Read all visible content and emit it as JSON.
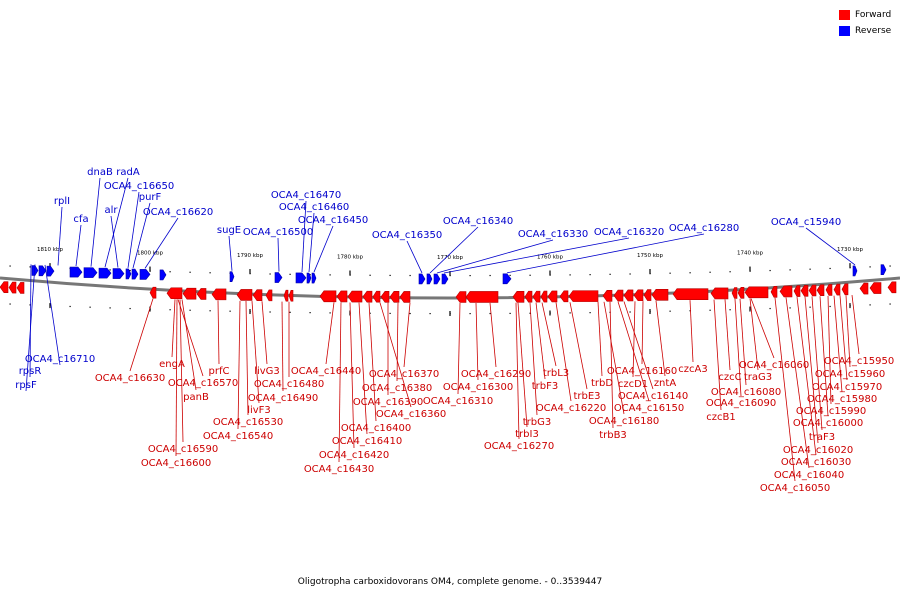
{
  "caption": "Oligotropha carboxidovorans OM4, complete genome. - 0..3539447",
  "legend": [
    {
      "label": "Forward",
      "color": "#ff0000"
    },
    {
      "label": "Reverse",
      "color": "#0000ff"
    }
  ],
  "colors": {
    "forward": "#ff0000",
    "forward_dark": "#b30000",
    "reverse": "#0000ff",
    "backbone": "#777777",
    "forward_label": "#cc0000",
    "reverse_label": "#0000cc"
  },
  "ruler_labels": [
    "1810 kbp",
    "1800 kbp",
    "1790 kbp",
    "1780 kbp",
    "1770 kbp",
    "1760 kbp",
    "1750 kbp",
    "1740 kbp",
    "1730 kbp"
  ],
  "reverse_genes": [
    "rpsR",
    "rpsF",
    "OCA4_c16710",
    "rplI",
    "cfa",
    "dnaB",
    "radA",
    "alr",
    "OCA4_c16650",
    "purF",
    "OCA4_c16620",
    "sugE",
    "OCA4_c16500",
    "OCA4_c16470",
    "OCA4_c16460",
    "OCA4_c16450",
    "OCA4_c16350",
    "OCA4_c16340",
    "OCA4_c16330",
    "OCA4_c16320",
    "OCA4_c16280",
    "OCA4_c15940"
  ],
  "forward_genes": [
    "OCA4_c16630",
    "engA",
    "OCA4_c16570",
    "panB",
    "prfC",
    "OCA4_c16590",
    "OCA4_c16600",
    "livG3",
    "OCA4_c16480",
    "OCA4_c16490",
    "livF3",
    "OCA4_c16530",
    "OCA4_c16540",
    "OCA4_c16440",
    "OCA4_c16370",
    "OCA4_c16380",
    "OCA4_c16390",
    "OCA4_c16360",
    "OCA4_c16400",
    "OCA4_c16410",
    "OCA4_c16420",
    "OCA4_c16430",
    "OCA4_c16290",
    "OCA4_c16300",
    "OCA4_c16310",
    "trbL3",
    "trbF3",
    "trbG3",
    "trbI3",
    "OCA4_c16270",
    "trbE3",
    "OCA4_c16220",
    "trbD",
    "OCA4_c16160",
    "czcD1",
    "zntA",
    "OCA4_c16140",
    "OCA4_c16150",
    "OCA4_c16180",
    "trbB3",
    "czcA3",
    "czcC",
    "traG3",
    "OCA4_c16060",
    "OCA4_c16080",
    "OCA4_c16090",
    "czcB1",
    "OCA4_c15950",
    "OCA4_c15960",
    "OCA4_c15970",
    "OCA4_c15980",
    "OCA4_c15990",
    "OCA4_c16000",
    "traF3",
    "OCA4_c16020",
    "OCA4_c16030",
    "OCA4_c16040",
    "OCA4_c16050"
  ]
}
